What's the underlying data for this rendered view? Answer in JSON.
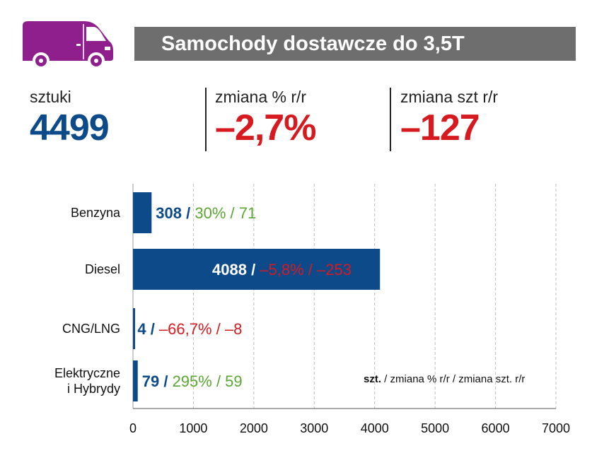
{
  "title": "Samochody dostawcze do 3,5T",
  "colors": {
    "accent_purple": "#8e1f8c",
    "title_bg": "#6e6e6e",
    "blue": "#0d4a8a",
    "red": "#d71920",
    "green": "#5aa632"
  },
  "icons": {
    "vehicle": "van-icon"
  },
  "kpis": [
    {
      "label": "sztuki",
      "value": "4499",
      "color": "blue"
    },
    {
      "label": "zmiana % r/r",
      "value": "–2,7%",
      "color": "red"
    },
    {
      "label": "zmiana szt r/r",
      "value": "–127",
      "color": "red"
    }
  ],
  "legend_note": {
    "bold": "szt.",
    "rest": " / zmiana % r/r / zmiana szt. r/r"
  },
  "chart_data": {
    "type": "bar",
    "orientation": "horizontal",
    "categories": [
      "Benzyna",
      "Diesel",
      "CNG/LNG",
      "Elektryczne i Hybrydy"
    ],
    "category_lines": [
      [
        "Benzyna"
      ],
      [
        "Diesel"
      ],
      [
        "CNG/LNG"
      ],
      [
        "Elektryczne",
        "i Hybrydy"
      ]
    ],
    "values": [
      308,
      4088,
      4,
      79
    ],
    "data_labels": [
      {
        "count": "308",
        "sep": " / ",
        "change": "30% / 71",
        "change_color": "green",
        "inside": false
      },
      {
        "count": "4088",
        "sep": " / ",
        "change": "–5,8% / –253",
        "change_color": "red",
        "inside": true
      },
      {
        "count": "4",
        "sep": " / ",
        "change": "–66,7% / –8",
        "change_color": "red",
        "inside": false
      },
      {
        "count": "79",
        "sep": " / ",
        "change": "295% / 59",
        "change_color": "green",
        "inside": false
      }
    ],
    "xlim": [
      0,
      7000
    ],
    "xticks": [
      0,
      1000,
      2000,
      3000,
      4000,
      5000,
      6000,
      7000
    ],
    "grid": "vertical-dashed",
    "bar_color": "#0d4a8a"
  }
}
